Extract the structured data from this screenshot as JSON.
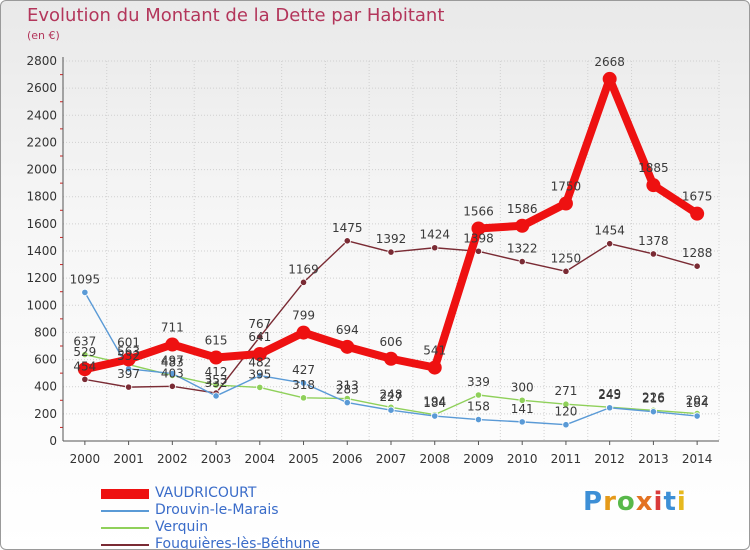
{
  "header": {
    "title": "Evolution du Montant de la Dette par Habitant",
    "subtitle": "(en €)"
  },
  "brand": {
    "letters": [
      "P",
      "r",
      "o",
      "x",
      "i",
      "t",
      "i"
    ],
    "colors": [
      "#3d8fd6",
      "#e59a1a",
      "#58b84a",
      "#e37222",
      "#d93a3a",
      "#3d8fd6",
      "#e6b81e"
    ]
  },
  "chart_data": {
    "type": "line",
    "x": [
      "2000",
      "2001",
      "2002",
      "2003",
      "2004",
      "2005",
      "2006",
      "2007",
      "2008",
      "2009",
      "2010",
      "2011",
      "2012",
      "2013",
      "2014"
    ],
    "ylim": [
      0,
      2800
    ],
    "yticks": [
      "0",
      "200",
      "400",
      "600",
      "800",
      "1000",
      "1200",
      "1400",
      "1600",
      "1800",
      "2000",
      "2200",
      "2400",
      "2600",
      "2800"
    ],
    "grid": true,
    "legend_position": "bottom-left",
    "series": [
      {
        "name": "VAUDRICOURT",
        "color": "#ee1111",
        "values": [
          529,
          601,
          711,
          615,
          641,
          799,
          694,
          606,
          541,
          1566,
          1586,
          1750,
          2668,
          1885,
          1675
        ],
        "labels": [
          "529",
          "601",
          "711",
          "615",
          "641",
          "799",
          "694",
          "606",
          "541",
          "1566",
          "1586",
          "1750",
          "2668",
          "1885",
          "1675"
        ]
      },
      {
        "name": "Drouvin-le-Marais",
        "color": "#5a9ad6",
        "values": [
          1095,
          532,
          497,
          332,
          482,
          427,
          283,
          227,
          184,
          158,
          141,
          120,
          245,
          216,
          184
        ],
        "labels": [
          "1095",
          "532",
          "497",
          "332",
          "482",
          "427",
          "283",
          "227",
          "184",
          "158",
          "141",
          "120",
          "245",
          "216",
          "184"
        ]
      },
      {
        "name": "Verquin",
        "color": "#8fd05a",
        "values": [
          637,
          563,
          483,
          412,
          395,
          318,
          313,
          248,
          194,
          339,
          300,
          271,
          249,
          226,
          202
        ],
        "labels": [
          "637",
          "563",
          "483",
          "412",
          "395",
          "318",
          "313",
          "248",
          "194",
          "339",
          "300",
          "271",
          "249",
          "226",
          "202"
        ]
      },
      {
        "name": "Fouquières-lès-Béthune",
        "color": "#7a2b34",
        "values": [
          454,
          397,
          403,
          353,
          767,
          1169,
          1475,
          1392,
          1424,
          1398,
          1322,
          1250,
          1454,
          1378,
          1288
        ],
        "labels": [
          "454",
          "397",
          "403",
          "353",
          "767",
          "1169",
          "1475",
          "1392",
          "1424",
          "1398",
          "1322",
          "1250",
          "1454",
          "1378",
          "1288"
        ]
      }
    ]
  }
}
